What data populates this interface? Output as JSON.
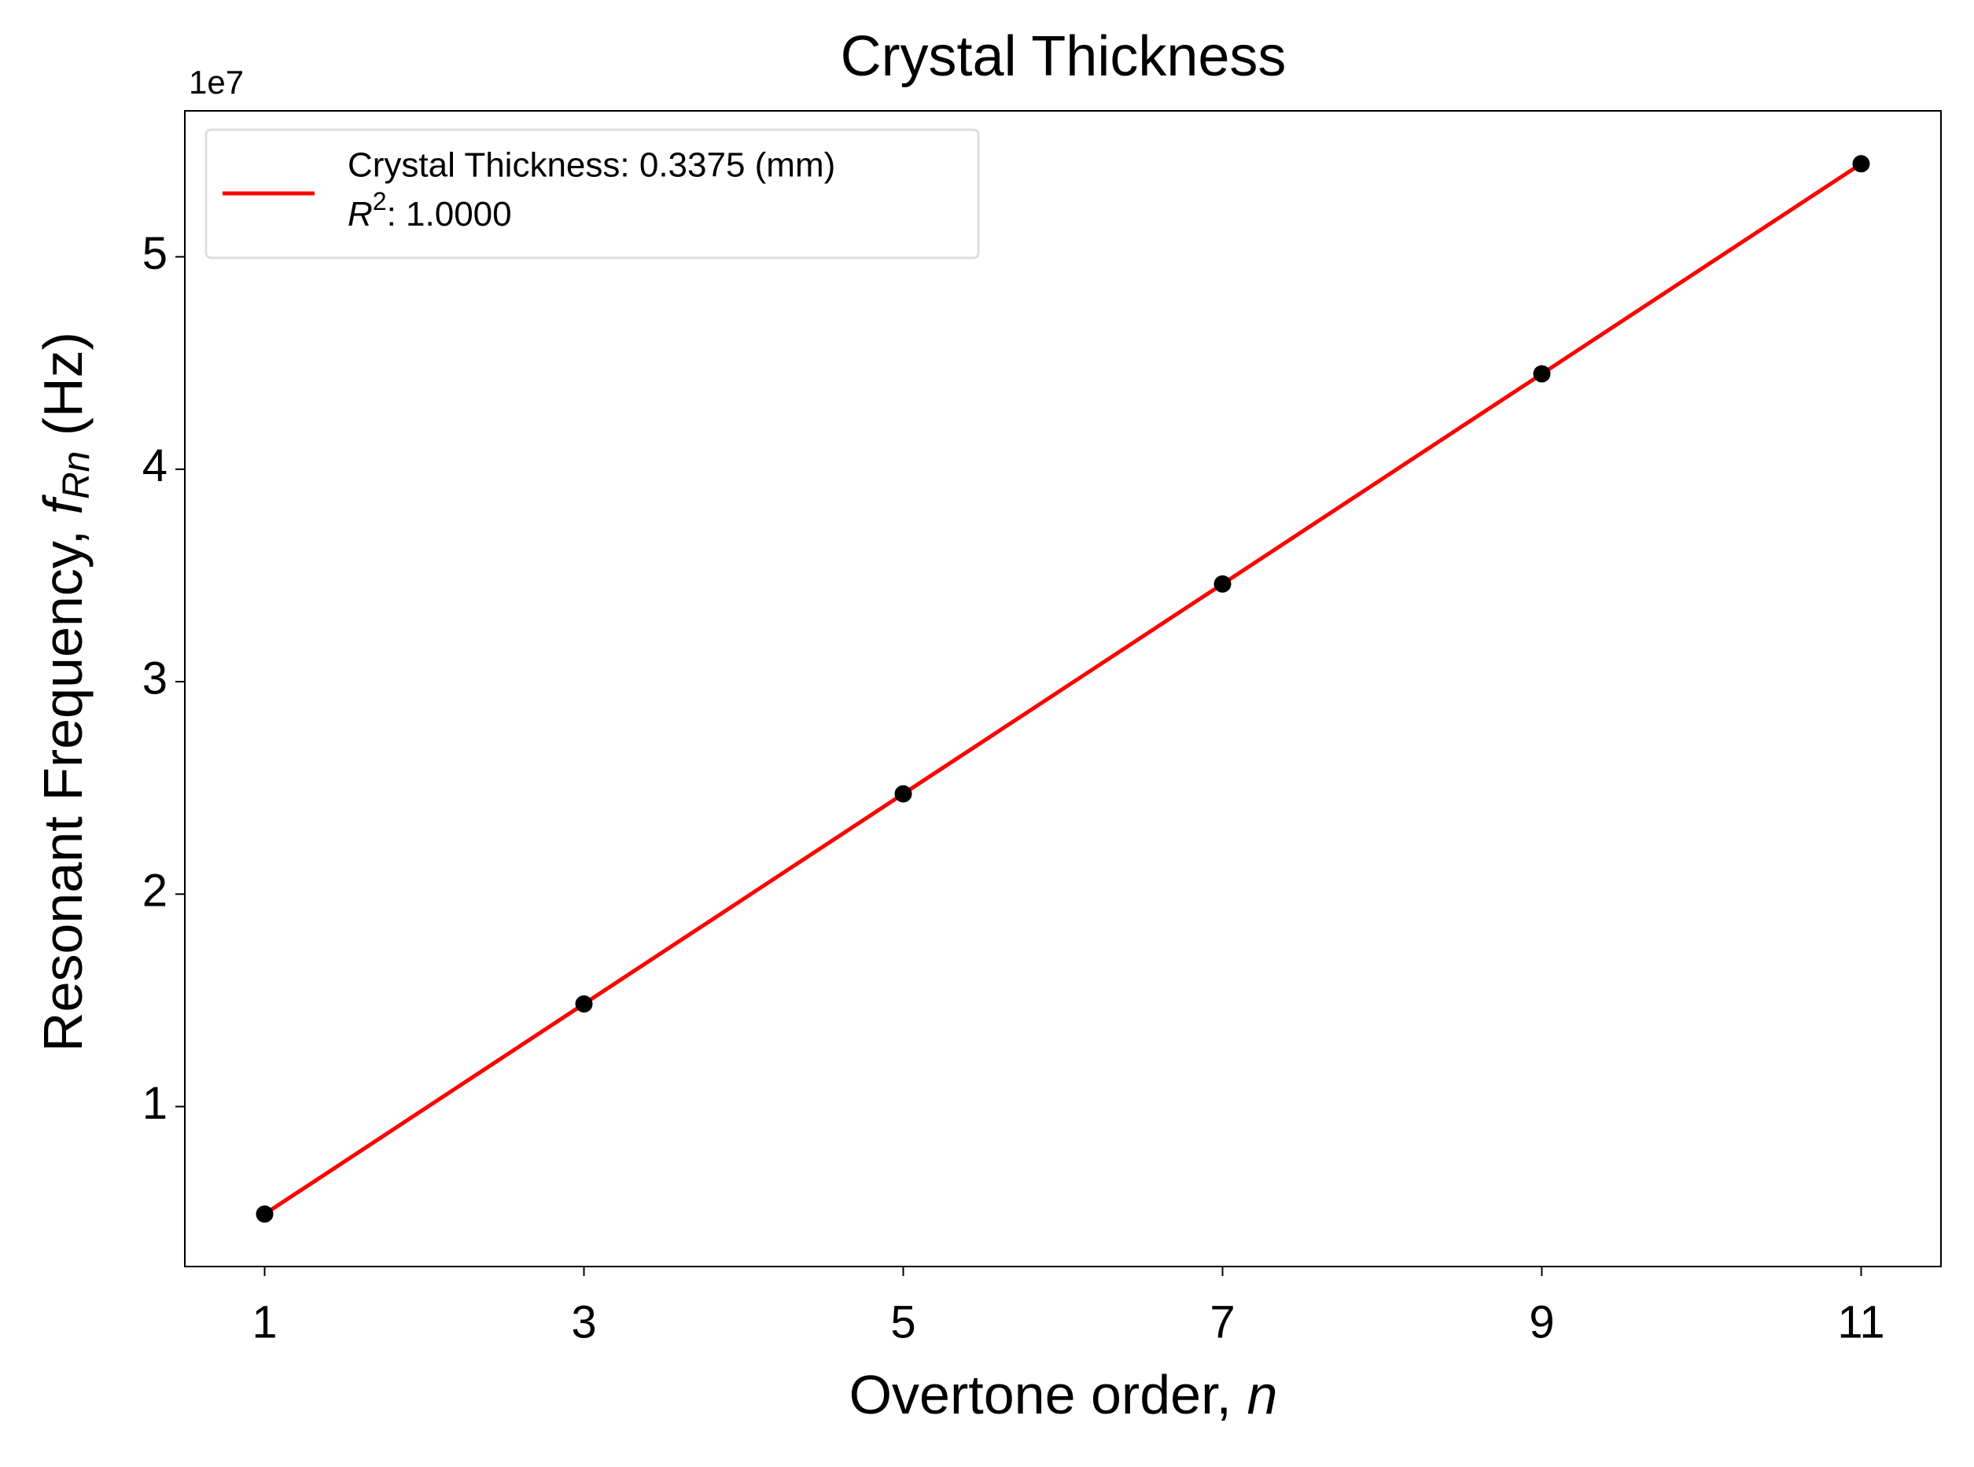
{
  "chart_data": {
    "type": "scatter",
    "title": "Crystal Thickness",
    "xlabel": {
      "text": "Overtone order, ",
      "symbol": "n"
    },
    "ylabel": {
      "text": "Resonant Frequency, ",
      "symbol": "f",
      "subscript": "Rn",
      "unit": " (Hz)"
    },
    "y_offset_label": "1e7",
    "x": [
      1,
      3,
      5,
      7,
      9,
      11
    ],
    "series": [
      {
        "type": "scatter",
        "color": "#000000",
        "values": [
          0.494,
          1.483,
          2.472,
          3.46,
          4.449,
          5.438
        ]
      },
      {
        "type": "line",
        "name": "Crystal Thickness: 0.3375 (mm)",
        "color": "#ff0000",
        "values": [
          0.494,
          1.483,
          2.472,
          3.46,
          4.449,
          5.438
        ]
      }
    ],
    "legend_note": {
      "symbol": "R",
      "power": "2",
      "text": ": 1.0000"
    },
    "legend_position": "upper left",
    "xlim": [
      0.5,
      11.5
    ],
    "ylim": [
      0.247,
      5.687
    ],
    "xticks": [
      1,
      3,
      5,
      7,
      9,
      11
    ],
    "yticks": [
      1,
      2,
      3,
      4,
      5
    ],
    "grid": false
  }
}
